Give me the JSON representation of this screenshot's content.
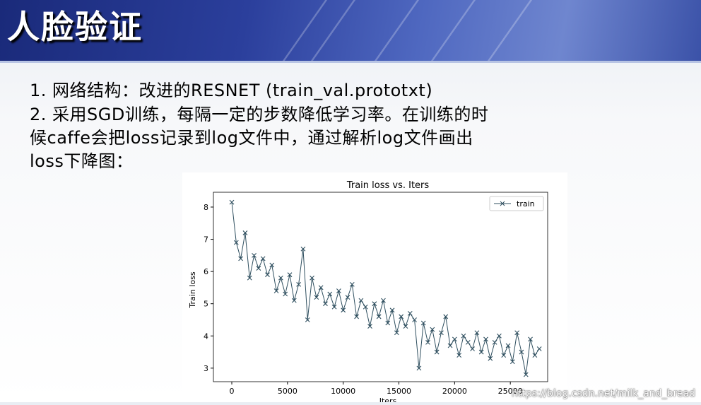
{
  "slide": {
    "title": "人脸验证",
    "lines": [
      "1.  网络结构：改进的RESNET (train_val.prototxt)",
      "2.  采用SGD训练，每隔一定的步数降低学习率。在训练的时",
      "候caffe会把loss记录到log文件中，通过解析log文件画出",
      "loss下降图："
    ],
    "watermark": "https://blog.csdn.net/milk_and_bread"
  },
  "chart_data": {
    "type": "line",
    "title": "Train loss  vs. Iters",
    "x_label": "Iters",
    "y_label": "Train loss",
    "xlim": [
      -1650,
      28350
    ],
    "ylim": [
      2.58,
      8.46
    ],
    "xticks": [
      0,
      5000,
      10000,
      15000,
      20000,
      25000
    ],
    "yticks": [
      3,
      4,
      5,
      6,
      7,
      8
    ],
    "legend": "upper right",
    "x": [
      0,
      400,
      800,
      1200,
      1600,
      2000,
      2400,
      2800,
      3200,
      3600,
      4000,
      4400,
      4800,
      5200,
      5600,
      6000,
      6400,
      6800,
      7200,
      7600,
      8000,
      8400,
      8800,
      9200,
      9600,
      10000,
      10400,
      10800,
      11200,
      11600,
      12000,
      12400,
      12800,
      13200,
      13600,
      14000,
      14400,
      14800,
      15200,
      15600,
      16000,
      16400,
      16800,
      17200,
      17600,
      18000,
      18400,
      18800,
      19200,
      19600,
      20000,
      20400,
      20800,
      21200,
      21600,
      22000,
      22400,
      22800,
      23200,
      23600,
      24000,
      24400,
      24800,
      25200,
      25600,
      26000,
      26400,
      26800,
      27200,
      27600
    ],
    "series": [
      {
        "name": "train",
        "color": "#2f4f5f",
        "values": [
          8.15,
          6.9,
          6.4,
          7.2,
          5.8,
          6.5,
          6.1,
          6.4,
          5.9,
          6.2,
          5.4,
          5.8,
          5.3,
          5.9,
          5.1,
          5.6,
          6.7,
          4.5,
          5.8,
          5.2,
          5.5,
          5.0,
          5.3,
          4.9,
          5.4,
          4.8,
          5.2,
          5.6,
          4.6,
          5.1,
          4.9,
          4.3,
          5.0,
          4.6,
          5.1,
          4.4,
          4.8,
          4.1,
          4.6,
          4.3,
          4.7,
          4.5,
          3.0,
          4.4,
          3.8,
          4.2,
          3.5,
          4.1,
          4.6,
          3.7,
          3.9,
          3.4,
          4.0,
          3.8,
          3.6,
          4.1,
          3.5,
          3.9,
          3.3,
          3.8,
          4.0,
          3.4,
          3.7,
          3.2,
          4.1,
          3.5,
          2.8,
          3.9,
          3.4,
          3.6
        ]
      }
    ]
  }
}
